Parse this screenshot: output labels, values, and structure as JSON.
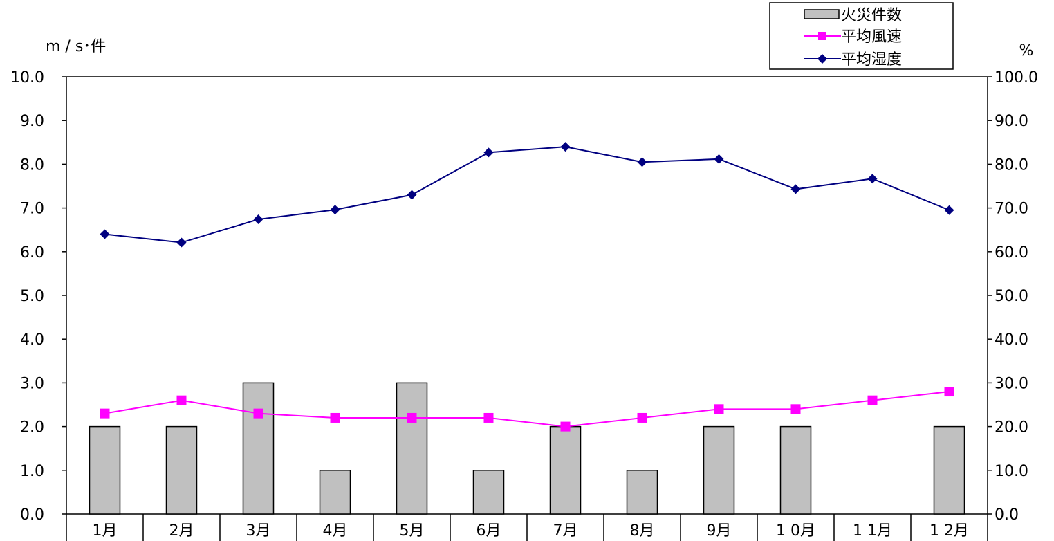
{
  "chart_data": {
    "type": "bar+line",
    "categories": [
      "1月",
      "2月",
      "3月",
      "4月",
      "5月",
      "6月",
      "7月",
      "8月",
      "9月",
      "1 0月",
      "1 1月",
      "1 2月"
    ],
    "left_unit": "m / s･件",
    "right_unit": "%",
    "left_axis": {
      "min": 0,
      "max": 10,
      "step": 1,
      "ticks": [
        "0.0",
        "1.0",
        "2.0",
        "3.0",
        "4.0",
        "5.0",
        "6.0",
        "7.0",
        "8.0",
        "9.0",
        "10.0"
      ]
    },
    "right_axis": {
      "min": 0,
      "max": 100,
      "step": 10,
      "ticks": [
        "0.0",
        "10.0",
        "20.0",
        "30.0",
        "40.0",
        "50.0",
        "60.0",
        "70.0",
        "80.0",
        "90.0",
        "100.0"
      ]
    },
    "series": [
      {
        "name": "火災件数",
        "kind": "bar",
        "axis": "left",
        "color": "#c0c0c0",
        "values": [
          2,
          2,
          3,
          1,
          3,
          1,
          2,
          1,
          2,
          2,
          0,
          2
        ]
      },
      {
        "name": "平均風速",
        "kind": "line",
        "axis": "left",
        "color": "#ff00ff",
        "marker": "square",
        "values": [
          2.3,
          2.6,
          2.3,
          2.2,
          2.2,
          2.2,
          2.0,
          2.2,
          2.4,
          2.4,
          2.6,
          2.8
        ]
      },
      {
        "name": "平均湿度",
        "kind": "line",
        "axis": "right",
        "color": "#000080",
        "marker": "diamond",
        "values": [
          64.0,
          62.1,
          67.4,
          69.6,
          73.0,
          82.7,
          84.0,
          80.5,
          81.2,
          74.3,
          76.7,
          69.5
        ]
      }
    ],
    "legend": "top-right"
  }
}
